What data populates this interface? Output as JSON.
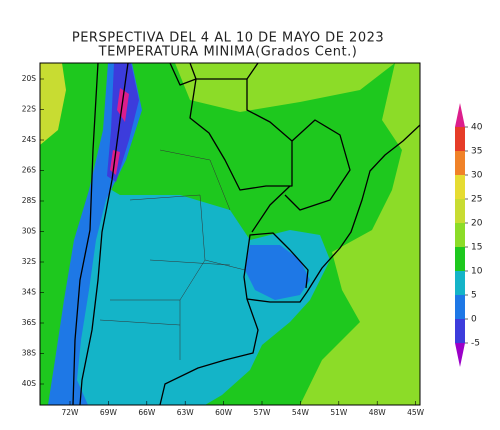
{
  "title": [
    "PERSPECTIVA DEL 4 AL 10 DE MAYO DE 2023",
    "TEMPERATURA MINIMA(Grados Cent.)"
  ],
  "map": {
    "lat_labels": [
      "20S",
      "22S",
      "24S",
      "26S",
      "28S",
      "30S",
      "32S",
      "34S",
      "36S",
      "38S",
      "40S"
    ],
    "lon_labels": [
      "72W",
      "69W",
      "66W",
      "63W",
      "60W",
      "57W",
      "54W",
      "51W",
      "48W",
      "45W"
    ]
  },
  "colorbar": {
    "ticks": [
      -5,
      0,
      5,
      10,
      15,
      20,
      25,
      30,
      35,
      40
    ],
    "colors": [
      "#9b00c8",
      "#3c3cdc",
      "#1e78e6",
      "#14b4c8",
      "#1ec81e",
      "#8cdc28",
      "#c8dc32",
      "#e6dc32",
      "#f08228",
      "#e63c28",
      "#dc1e8c"
    ]
  }
}
